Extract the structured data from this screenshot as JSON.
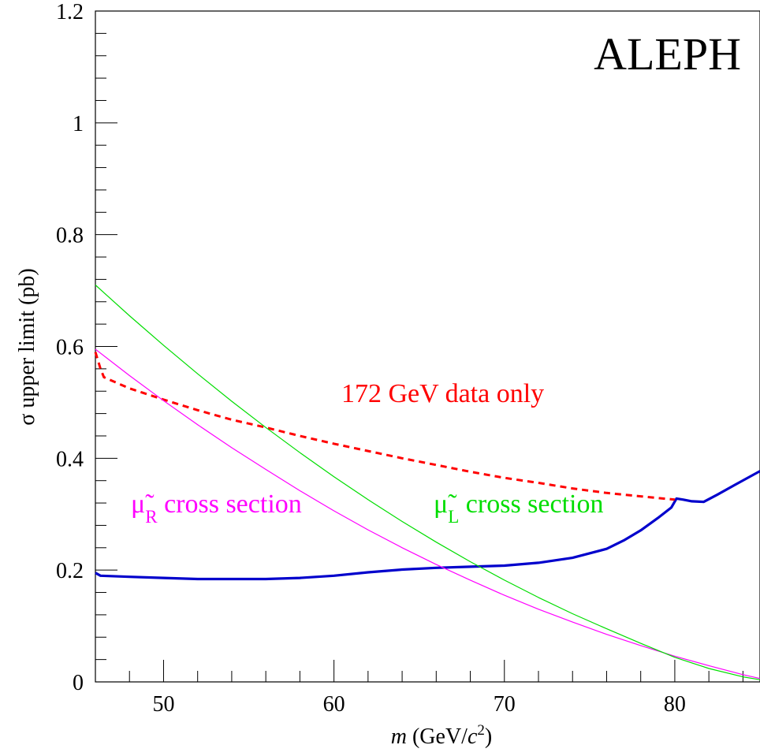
{
  "chart_data": {
    "type": "line",
    "brand": "ALEPH",
    "ylabel": "σ upper limit (pb)",
    "xlabel_italic": "m",
    "xlabel_rest": " (GeV/",
    "xlabel_c": "c",
    "xlabel_sup": "2",
    "xlabel_close": ")",
    "xlim": [
      46,
      85
    ],
    "ylim": [
      0,
      1.2
    ],
    "x_ticks": [
      50,
      60,
      70,
      80
    ],
    "x_tick_labels": [
      "50",
      "60",
      "70",
      "80"
    ],
    "y_ticks": [
      0,
      0.2,
      0.4,
      0.6,
      0.8,
      1.0,
      1.2
    ],
    "y_tick_labels": [
      "0",
      "0.2",
      "0.4",
      "0.6",
      "0.8",
      "1",
      "1.2"
    ],
    "annotations": {
      "data172": "172 GeV data only",
      "muR_symbol": "μ̃",
      "muR_sub": "R",
      "muR_text": " cross section",
      "muL_symbol": "μ̃",
      "muL_sub": "L",
      "muL_text": " cross section"
    },
    "colors": {
      "limit": "#0000cc",
      "data172": "#ff0000",
      "muR": "#ff00ff",
      "muL": "#00dd00"
    },
    "series": [
      {
        "id": "limit",
        "style": "solid-thick",
        "x": [
          46,
          46.3,
          48,
          50,
          52,
          54,
          56,
          58,
          60,
          62,
          64,
          66,
          68,
          70,
          72,
          74,
          76,
          77,
          78,
          79,
          79.8,
          80.1,
          80.5,
          81,
          81.7,
          82.5,
          83.5,
          85
        ],
        "y": [
          0.195,
          0.19,
          0.188,
          0.186,
          0.184,
          0.184,
          0.184,
          0.186,
          0.19,
          0.196,
          0.201,
          0.204,
          0.206,
          0.208,
          0.213,
          0.222,
          0.238,
          0.253,
          0.271,
          0.293,
          0.312,
          0.328,
          0.326,
          0.323,
          0.322,
          0.335,
          0.352,
          0.377
        ]
      },
      {
        "id": "data172",
        "style": "dashed",
        "x": [
          46,
          46.3,
          46.5,
          48,
          50,
          52,
          54,
          56,
          58,
          60,
          62,
          64,
          66,
          68,
          70,
          72,
          74,
          76,
          78,
          80
        ],
        "y": [
          0.59,
          0.56,
          0.545,
          0.525,
          0.505,
          0.486,
          0.469,
          0.455,
          0.44,
          0.426,
          0.413,
          0.4,
          0.388,
          0.376,
          0.365,
          0.356,
          0.346,
          0.338,
          0.332,
          0.326
        ]
      },
      {
        "id": "muR",
        "style": "solid-thin",
        "x": [
          46,
          48,
          50,
          52,
          54,
          56,
          58,
          60,
          62,
          64,
          66,
          68,
          70,
          72,
          74,
          76,
          78,
          80,
          82,
          84,
          85
        ],
        "y": [
          0.595,
          0.548,
          0.503,
          0.46,
          0.419,
          0.38,
          0.342,
          0.306,
          0.272,
          0.24,
          0.21,
          0.182,
          0.155,
          0.13,
          0.107,
          0.085,
          0.065,
          0.046,
          0.029,
          0.013,
          0.006
        ]
      },
      {
        "id": "muL",
        "style": "solid-thin",
        "x": [
          46,
          48,
          50,
          52,
          54,
          56,
          58,
          60,
          62,
          64,
          66,
          68,
          70,
          72,
          74,
          76,
          78,
          80,
          82,
          84,
          85
        ],
        "y": [
          0.71,
          0.655,
          0.602,
          0.551,
          0.502,
          0.455,
          0.41,
          0.367,
          0.326,
          0.287,
          0.25,
          0.215,
          0.182,
          0.151,
          0.122,
          0.095,
          0.069,
          0.044,
          0.024,
          0.009,
          0.004
        ]
      }
    ]
  }
}
